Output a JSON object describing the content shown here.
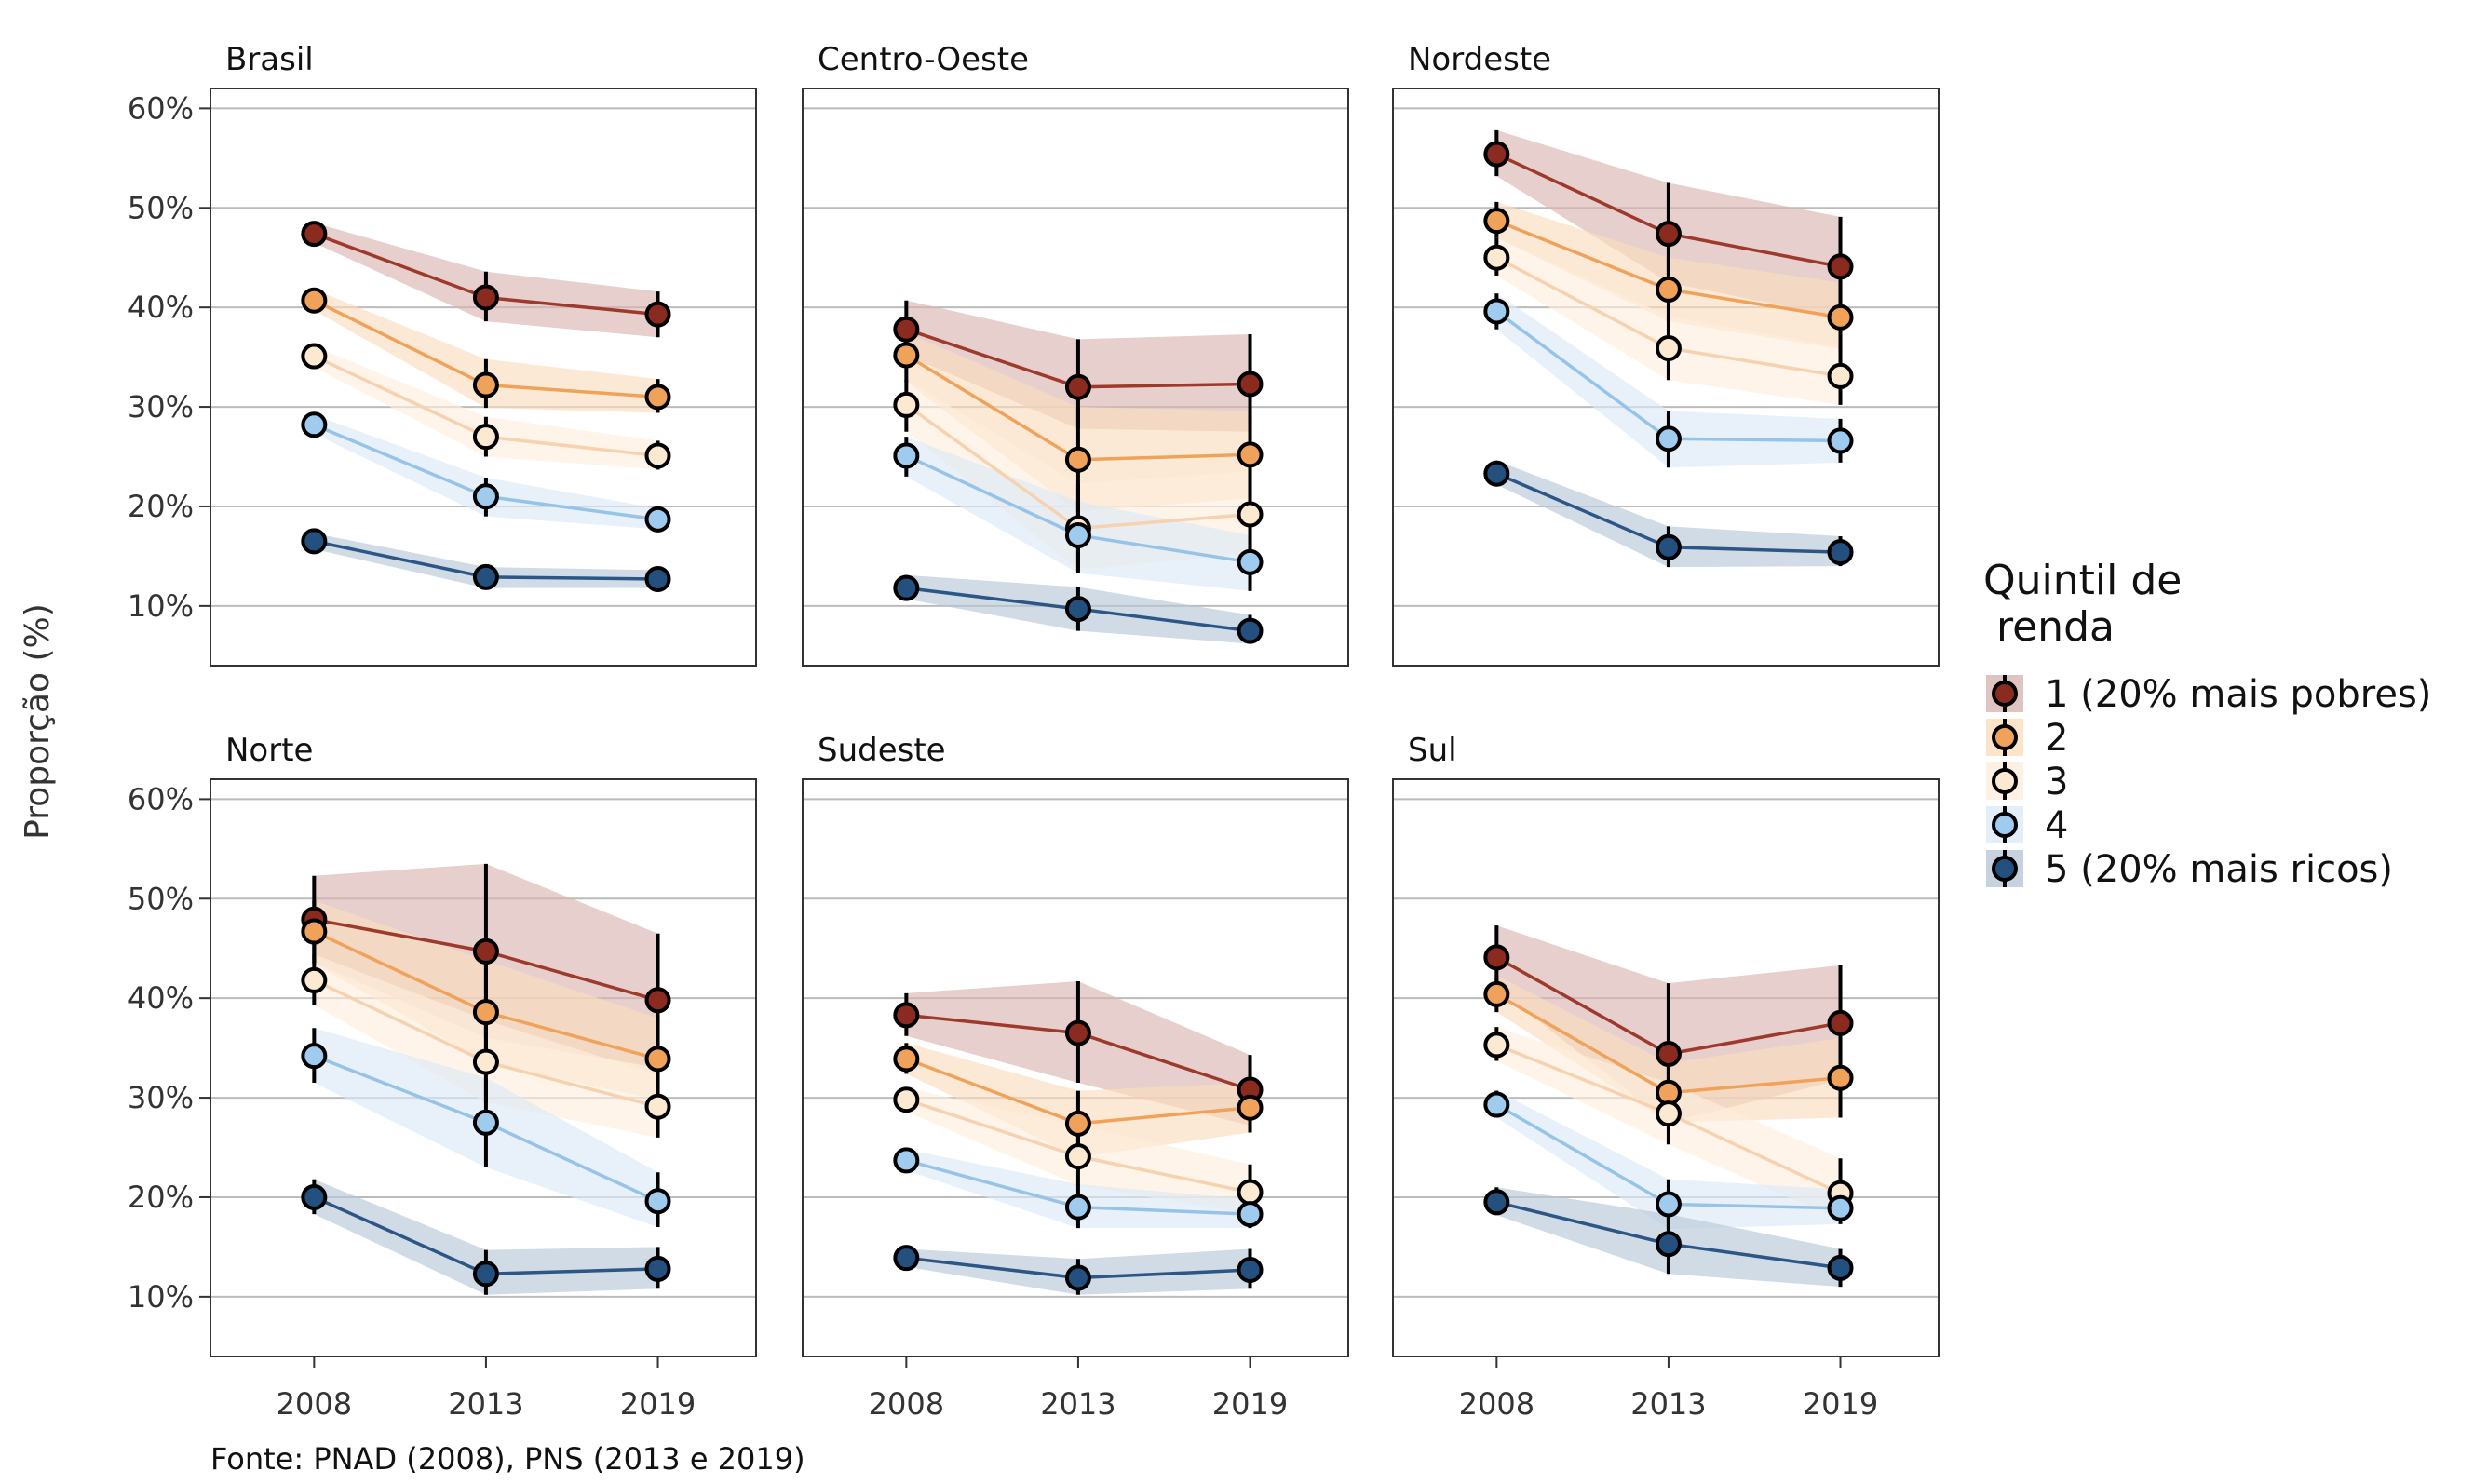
{
  "ylabel": "Proporção (%)",
  "caption": "Fonte: PNAD (2008), PNS (2013 e 2019)",
  "legend": {
    "title_line1": "Quintil de",
    "title_line2": " renda",
    "items": [
      {
        "label": "1 (20% mais pobres)",
        "color": "#8B2A1E",
        "band": "#D8B5B1"
      },
      {
        "label": "2",
        "color": "#F0A25A",
        "band": "#FBDDBE"
      },
      {
        "label": "3",
        "color": "#FCE9D2",
        "band": "#FDEEDD"
      },
      {
        "label": "4",
        "color": "#9ECBEE",
        "band": "#DCEAF7"
      },
      {
        "label": "5 (20% mais ricos)",
        "color": "#23507F",
        "band": "#B9C7D8"
      }
    ]
  },
  "colors": {
    "series_lines": [
      "#9E3A2C",
      "#F0A25A",
      "#F6D2B0",
      "#96C3E8",
      "#2B5686"
    ],
    "point_fill": [
      "#8B2A1E",
      "#F0A25A",
      "#FCE9D2",
      "#9ECBEE",
      "#23507F"
    ],
    "bands": [
      "#D8B5B1",
      "#FBDDBE",
      "#FDEEDD",
      "#DCEAF7",
      "#B9C7D8"
    ],
    "gridline": "#BBBBBB",
    "axis": "#333333"
  },
  "chart_data": {
    "type": "line",
    "x": [
      2008,
      2013,
      2019
    ],
    "x_tick_labels": [
      "2008",
      "2013",
      "2019"
    ],
    "ylim": [
      4,
      62
    ],
    "y_ticks": [
      10,
      20,
      30,
      40,
      50,
      60
    ],
    "y_tick_labels": [
      "10%",
      "20%",
      "30%",
      "40%",
      "50%",
      "60%"
    ],
    "grid": true,
    "legend_position": "right",
    "series_names": [
      "1 (20% mais pobres)",
      "2",
      "3",
      "4",
      "5 (20% mais ricos)"
    ],
    "panels": [
      {
        "title": "Brasil",
        "series": [
          {
            "name": "1 (20% mais pobres)",
            "values": [
              47.4,
              41.0,
              39.3
            ],
            "lower": [
              46.5,
              38.6,
              37.0
            ],
            "upper": [
              48.5,
              43.6,
              41.6
            ]
          },
          {
            "name": "2",
            "values": [
              40.7,
              32.2,
              31.0
            ],
            "lower": [
              39.7,
              29.9,
              29.4
            ],
            "upper": [
              41.8,
              34.8,
              32.8
            ]
          },
          {
            "name": "3",
            "values": [
              35.1,
              27.0,
              25.1
            ],
            "lower": [
              34.0,
              25.0,
              23.7
            ],
            "upper": [
              36.1,
              29.0,
              26.6
            ]
          },
          {
            "name": "4",
            "values": [
              28.2,
              21.0,
              18.7
            ],
            "lower": [
              27.3,
              19.0,
              17.7
            ],
            "upper": [
              29.2,
              22.9,
              19.8
            ]
          },
          {
            "name": "5 (20% mais ricos)",
            "values": [
              16.5,
              12.9,
              12.7
            ],
            "lower": [
              15.7,
              11.8,
              11.8
            ],
            "upper": [
              17.3,
              13.9,
              13.6
            ]
          }
        ]
      },
      {
        "title": "Centro-Oeste",
        "series": [
          {
            "name": "1 (20% mais pobres)",
            "values": [
              37.8,
              32.0,
              32.3
            ],
            "lower": [
              35.2,
              27.8,
              27.5
            ],
            "upper": [
              40.7,
              36.8,
              37.3
            ]
          },
          {
            "name": "2",
            "values": [
              35.2,
              24.7,
              25.2
            ],
            "lower": [
              32.5,
              19.5,
              20.8
            ],
            "upper": [
              37.5,
              30.0,
              29.6
            ]
          },
          {
            "name": "3",
            "values": [
              30.2,
              17.8,
              19.2
            ],
            "lower": [
              27.5,
              13.6,
              15.3
            ],
            "upper": [
              32.7,
              22.3,
              23.5
            ]
          },
          {
            "name": "4",
            "values": [
              25.1,
              17.1,
              14.4
            ],
            "lower": [
              23.0,
              13.3,
              11.5
            ],
            "upper": [
              27.0,
              20.5,
              17.1
            ]
          },
          {
            "name": "5 (20% mais ricos)",
            "values": [
              11.8,
              9.7,
              7.5
            ],
            "lower": [
              10.7,
              7.5,
              6.2
            ],
            "upper": [
              13.1,
              11.9,
              9.1
            ]
          }
        ]
      },
      {
        "title": "Nordeste",
        "series": [
          {
            "name": "1 (20% mais pobres)",
            "values": [
              55.4,
              47.4,
              44.1
            ],
            "lower": [
              53.2,
              42.5,
              39.0
            ],
            "upper": [
              57.8,
              52.5,
              49.1
            ]
          },
          {
            "name": "2",
            "values": [
              48.7,
              41.8,
              39.0
            ],
            "lower": [
              47.0,
              38.6,
              35.8
            ],
            "upper": [
              50.6,
              45.0,
              42.5
            ]
          },
          {
            "name": "3",
            "values": [
              45.0,
              35.9,
              33.1
            ],
            "lower": [
              43.2,
              32.7,
              30.2
            ],
            "upper": [
              47.0,
              39.1,
              36.0
            ]
          },
          {
            "name": "4",
            "values": [
              39.6,
              26.8,
              26.6
            ],
            "lower": [
              37.8,
              23.9,
              24.4
            ],
            "upper": [
              41.4,
              29.6,
              28.8
            ]
          },
          {
            "name": "5 (20% mais ricos)",
            "values": [
              23.3,
              15.9,
              15.4
            ],
            "lower": [
              22.2,
              13.9,
              14.0
            ],
            "upper": [
              24.6,
              18.0,
              17.0
            ]
          }
        ]
      },
      {
        "title": "Norte",
        "series": [
          {
            "name": "1 (20% mais pobres)",
            "values": [
              47.9,
              44.7,
              39.8
            ],
            "lower": [
              43.6,
              36.0,
              33.0
            ],
            "upper": [
              52.3,
              53.5,
              46.5
            ]
          },
          {
            "name": "2",
            "values": [
              46.7,
              38.6,
              33.9
            ],
            "lower": [
              43.5,
              33.5,
              29.8
            ],
            "upper": [
              49.8,
              43.8,
              38.0
            ]
          },
          {
            "name": "3",
            "values": [
              41.8,
              33.6,
              29.1
            ],
            "lower": [
              39.3,
              29.5,
              26.0
            ],
            "upper": [
              44.4,
              37.8,
              32.3
            ]
          },
          {
            "name": "4",
            "values": [
              34.2,
              27.5,
              19.6
            ],
            "lower": [
              31.5,
              23.0,
              17.0
            ],
            "upper": [
              37.0,
              32.0,
              22.5
            ]
          },
          {
            "name": "5 (20% mais ricos)",
            "values": [
              20.0,
              12.3,
              12.8
            ],
            "lower": [
              18.3,
              10.2,
              10.8
            ],
            "upper": [
              21.8,
              14.7,
              15.0
            ]
          }
        ]
      },
      {
        "title": "Sudeste",
        "series": [
          {
            "name": "1 (20% mais pobres)",
            "values": [
              38.3,
              36.5,
              30.8
            ],
            "lower": [
              36.2,
              31.5,
              27.2
            ],
            "upper": [
              40.5,
              41.7,
              34.3
            ]
          },
          {
            "name": "2",
            "values": [
              33.9,
              27.4,
              29.0
            ],
            "lower": [
              32.4,
              24.0,
              26.5
            ],
            "upper": [
              35.5,
              30.7,
              31.5
            ]
          },
          {
            "name": "3",
            "values": [
              29.8,
              24.1,
              20.5
            ],
            "lower": [
              28.6,
              21.2,
              18.3
            ],
            "upper": [
              31.0,
              27.2,
              23.3
            ]
          },
          {
            "name": "4",
            "values": [
              23.7,
              19.0,
              18.3
            ],
            "lower": [
              22.7,
              16.9,
              16.9
            ],
            "upper": [
              24.8,
              21.3,
              19.8
            ]
          },
          {
            "name": "5 (20% mais ricos)",
            "values": [
              13.9,
              11.9,
              12.7
            ],
            "lower": [
              13.0,
              10.2,
              10.8
            ],
            "upper": [
              14.8,
              13.8,
              14.8
            ]
          }
        ]
      },
      {
        "title": "Sul",
        "series": [
          {
            "name": "1 (20% mais pobres)",
            "values": [
              44.1,
              34.4,
              37.5
            ],
            "lower": [
              41.0,
              27.5,
              31.8
            ],
            "upper": [
              47.3,
              41.5,
              43.3
            ]
          },
          {
            "name": "2",
            "values": [
              40.4,
              30.5,
              32.0
            ],
            "lower": [
              38.6,
              27.5,
              28.0
            ],
            "upper": [
              42.3,
              33.5,
              36.0
            ]
          },
          {
            "name": "3",
            "values": [
              35.3,
              28.4,
              20.4
            ],
            "lower": [
              33.7,
              25.3,
              17.7
            ],
            "upper": [
              37.1,
              31.5,
              23.9
            ]
          },
          {
            "name": "4",
            "values": [
              29.3,
              19.3,
              18.9
            ],
            "lower": [
              28.0,
              16.8,
              17.3
            ],
            "upper": [
              30.7,
              21.8,
              20.8
            ]
          },
          {
            "name": "5 (20% mais ricos)",
            "values": [
              19.5,
              15.3,
              12.9
            ],
            "lower": [
              18.2,
              12.3,
              11.0
            ],
            "upper": [
              21.0,
              18.3,
              14.8
            ]
          }
        ]
      }
    ]
  }
}
